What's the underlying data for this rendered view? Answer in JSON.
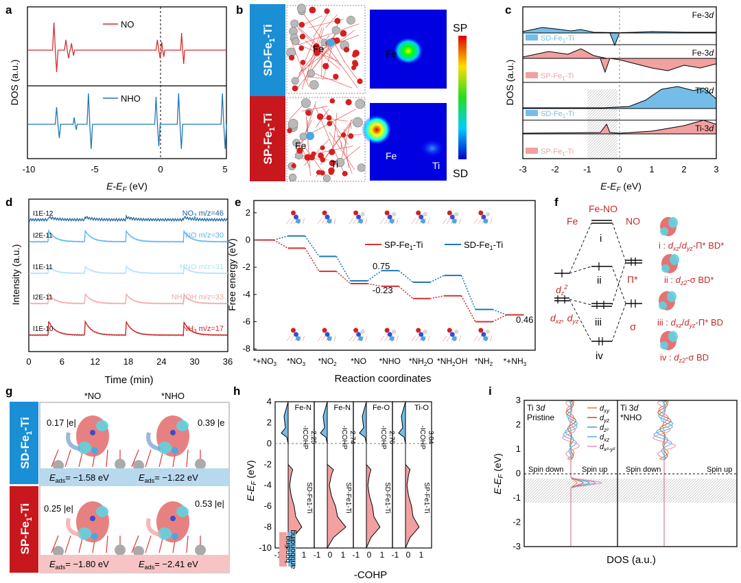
{
  "colors": {
    "red": "#d32f2f",
    "red_fill": "#f2a0a0",
    "blue": "#1f77b4",
    "blue_fill": "#74bde8",
    "light_blue": "#8fd0f0",
    "pink": "#f2a6a6",
    "dark_red": "#c62828",
    "sd_band": "#1a8fd6",
    "sp_band": "#c8171d"
  },
  "panels": {
    "a": {
      "letter": "a",
      "xlabel": "E-E",
      "xlabel_sub": "F",
      "xlabel_unit": " (eV)",
      "ylabel": "DOS (a.u.)",
      "ticks": [
        "-10",
        "-5",
        "0",
        "5"
      ],
      "legend_top": "NO",
      "legend_bottom": "NHO"
    },
    "b": {
      "letter": "b",
      "row1": "SD-Fe",
      "row1_sub": "1",
      "row1_tail": "-Ti",
      "row2": "SP-Fe",
      "row2_sub": "1",
      "row2_tail": "-Ti",
      "scale_top": "SP",
      "scale_bottom": "SD",
      "lbl_fe": "Fe",
      "lbl_ti": "Ti"
    },
    "c": {
      "letter": "c",
      "xlabel": "E-E",
      "xlabel_sub": "F",
      "xlabel_unit": " (eV)",
      "ylabel": "DOS (a.u.)",
      "ticks": [
        "-3",
        "-2",
        "-1",
        "0",
        "1",
        "2",
        "3"
      ],
      "strips": [
        {
          "orb": "Fe-3",
          "orb_i": "d",
          "leg": "SD-Fe",
          "leg_sub": "1",
          "leg_tail": "-Ti",
          "kind": "sd"
        },
        {
          "orb": "Fe-3",
          "orb_i": "d",
          "leg": "SP-Fe",
          "leg_sub": "1",
          "leg_tail": "-Ti",
          "kind": "sp"
        },
        {
          "orb": "Ti-3",
          "orb_i": "d",
          "leg": "SD-Fe",
          "leg_sub": "1",
          "leg_tail": "-Ti",
          "kind": "sd"
        },
        {
          "orb": "Ti-3",
          "orb_i": "d",
          "leg": "SP-Fe",
          "leg_sub": "1",
          "leg_tail": "-Ti",
          "kind": "sp"
        }
      ]
    },
    "d": {
      "letter": "d",
      "xlabel": "Time (min)",
      "ylabel": "Intensity (a.u.)",
      "ticks": [
        "0",
        "6",
        "12",
        "18",
        "24",
        "30",
        "36"
      ],
      "traces": [
        {
          "scale": "1E-12",
          "label": "NO",
          "sub": "2",
          "tail": " m/z=46"
        },
        {
          "scale": "2E-11",
          "label": "NO m/z=30",
          "sub": "",
          "tail": ""
        },
        {
          "scale": "1E-11",
          "label": "HNO m/z=31",
          "sub": "",
          "tail": ""
        },
        {
          "scale": "2E-11",
          "label": "NH",
          "sub": "2",
          "tail": "OH m/z=33"
        },
        {
          "scale": "1E-10",
          "label": "NH",
          "sub": "3",
          "tail": " m/z=17"
        }
      ]
    },
    "e": {
      "letter": "e",
      "ylabel": "Free energy (eV)",
      "xlabel": "Reaction coordinates",
      "yticks": [
        "2",
        "0",
        "-2",
        "-4",
        "-6",
        "-8"
      ],
      "legend_sp": "SP-Fe",
      "legend_sd": "SD-Fe",
      "legend_sub": "1",
      "legend_tail": "-Ti",
      "ann1": "0.75",
      "ann2": "-0.23",
      "ann3": "0.46",
      "steps": [
        "*+NO",
        "*NO",
        "*NO",
        "*NO",
        "*NHO",
        "*NH",
        "*NH",
        "*NH",
        "*+NH"
      ],
      "step_subs": [
        "3",
        "3",
        "2",
        "",
        "",
        "2",
        "2",
        "2",
        "3"
      ],
      "step_tails": [
        "",
        "",
        "",
        "",
        "",
        "O",
        "OH",
        "",
        ""
      ]
    },
    "f": {
      "letter": "f",
      "fe": "Fe",
      "feno": "Fe-NO",
      "no": "NO",
      "i": "i",
      "ii": "ii",
      "iii": "iii",
      "iv": "iv",
      "pi": "Π*",
      "sigma": "σ",
      "dz2": "d",
      "dz2_sub": "z",
      "dz2_sup": "2",
      "dxz": "d",
      "dxz_sub": "xz",
      "dyz": "d",
      "dyz_sub": "yz",
      "desc": [
        "i : d/d-Π* BD*",
        "ii : d-σ BD*",
        "iii : d/d-Π* BD",
        "iv : d-σ BD"
      ]
    },
    "g": {
      "letter": "g",
      "col1": "*NO",
      "col2": "*NHO",
      "row1": "SD-Fe",
      "row2": "SP-Fe",
      "sub": "1",
      "tail": "-Ti",
      "q1": "0.17 |e|",
      "q2": "0.39 |e",
      "q3": "0.25 |e|",
      "q4": "0.53 |e|",
      "e1": "= −1.58 eV",
      "e2": "= −1.22 eV",
      "e3": "= −1.80 eV",
      "e4": "= −2.41 eV",
      "eads": "E",
      "eads_sub": "ads"
    },
    "h": {
      "letter": "h",
      "ylabel": "E-E",
      "ylabel_sub": "F",
      "ylabel_unit": " (eV)",
      "xlabel": "-COHP",
      "yticks": [
        "4",
        "2",
        "0",
        "-2",
        "-4",
        "-6",
        "-8",
        "-10"
      ],
      "xticks": [
        "-1",
        "0",
        "1"
      ],
      "bonding": "bonding",
      "antibonding": "antibonding",
      "cols": [
        {
          "bond": "Fe-N",
          "icohp": "-ICOHP",
          "val": "2.25",
          "sys": "SD-Fe1-Ti"
        },
        {
          "bond": "Fe-N",
          "icohp": "-ICOHP",
          "val": "2.74",
          "sys": "SP-Fe1-Ti"
        },
        {
          "bond": "Fe-O",
          "icohp": "-ICOHP",
          "val": "2.70",
          "sys": "SD-Fe1-Ti"
        },
        {
          "bond": "Ti-O",
          "icohp": "-ICOHP",
          "val": "3.04",
          "sys": "SP-Fe1-Ti"
        }
      ]
    },
    "i": {
      "letter": "i",
      "xlabel": "DOS (a.u.)",
      "ylabel": "E-E",
      "ylabel_sub": "F",
      "ylabel_unit": " (eV)",
      "yticks": [
        "3",
        "2",
        "1",
        "0",
        "-1",
        "-2",
        "-3"
      ],
      "left_title": "Ti 3",
      "left_title_i": "d",
      "left_sub": "Pristine",
      "right_title": "Ti 3",
      "right_title_i": "d",
      "right_sub": "*NHO",
      "spin_down": "Spin down",
      "spin_up": "Spin up",
      "legend": [
        {
          "n": "d",
          "s": "xy",
          "c": "#e8833a"
        },
        {
          "n": "d",
          "s": "yz",
          "c": "#d94a4a"
        },
        {
          "n": "d",
          "s": "z²",
          "c": "#3ab6b0"
        },
        {
          "n": "d",
          "s": "xz",
          "c": "#5ab4f0"
        },
        {
          "n": "d",
          "s": "x²-y²",
          "c": "#f08fb0"
        }
      ]
    }
  }
}
